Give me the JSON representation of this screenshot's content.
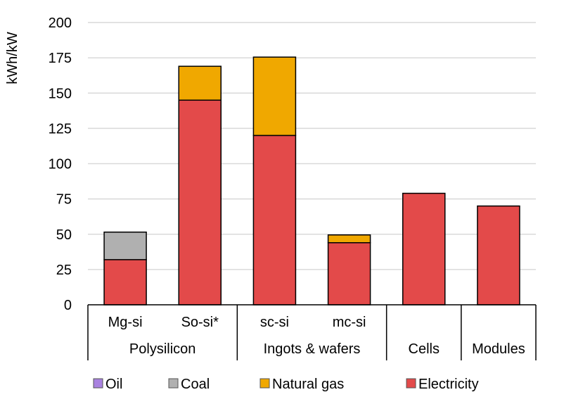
{
  "chart_data": {
    "type": "bar",
    "stacked": true,
    "ylabel": "kWh/kW",
    "ylim": [
      0,
      200
    ],
    "yticks": [
      0,
      25,
      50,
      75,
      100,
      125,
      150,
      175,
      200
    ],
    "grid": true,
    "legend_position": "bottom",
    "categories": [
      "Mg-si",
      "So-si*",
      "sc-si",
      "mc-si",
      "",
      ""
    ],
    "groups": [
      {
        "label": "Polysilicon",
        "span": 2
      },
      {
        "label": "Ingots & wafers",
        "span": 2
      },
      {
        "label": "Cells",
        "span": 1
      },
      {
        "label": "Modules",
        "span": 1
      }
    ],
    "series": [
      {
        "name": "Electricity",
        "color": "#e34a4a",
        "values": [
          32,
          145,
          120,
          44,
          79,
          70
        ]
      },
      {
        "name": "Natural gas",
        "color": "#f0a800",
        "values": [
          0,
          24,
          55.5,
          5.5,
          0,
          0
        ]
      },
      {
        "name": "Coal",
        "color": "#b0b0b0",
        "values": [
          19.5,
          0,
          0,
          0,
          0,
          0
        ]
      },
      {
        "name": "Oil",
        "color": "#a982e0",
        "values": [
          0,
          0,
          0,
          0,
          0,
          0
        ]
      }
    ],
    "legend_order": [
      "Oil",
      "Coal",
      "Natural gas",
      "Electricity"
    ]
  }
}
